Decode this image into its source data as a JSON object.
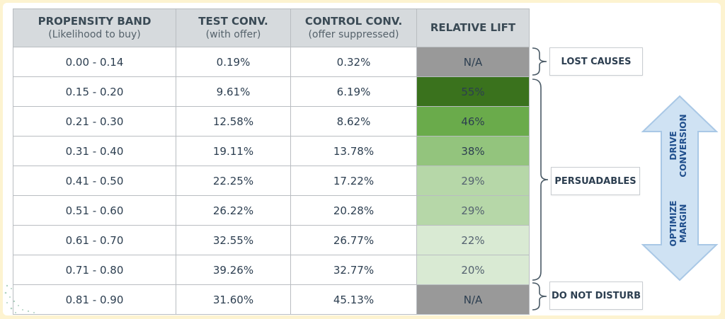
{
  "table": {
    "headers": [
      {
        "title": "PROPENSITY BAND",
        "sub": "(Likelihood to buy)"
      },
      {
        "title": "TEST CONV.",
        "sub": "(with offer)"
      },
      {
        "title": "CONTROL CONV.",
        "sub": "(offer suppressed)"
      },
      {
        "title": "RELATIVE LIFT",
        "sub": ""
      }
    ],
    "rows": [
      {
        "band": "0.00 - 0.14",
        "test": "0.19%",
        "control": "0.32%",
        "lift": "N/A",
        "lift_color": "#999999"
      },
      {
        "band": "0.15 - 0.20",
        "test": "9.61%",
        "control": "6.19%",
        "lift": "55%",
        "lift_color": "#3a721d"
      },
      {
        "band": "0.21 - 0.30",
        "test": "12.58%",
        "control": "8.62%",
        "lift": "46%",
        "lift_color": "#6aab4b"
      },
      {
        "band": "0.31 - 0.40",
        "test": "19.11%",
        "control": "13.78%",
        "lift": "38%",
        "lift_color": "#93c47d"
      },
      {
        "band": "0.41 - 0.50",
        "test": "22.25%",
        "control": "17.22%",
        "lift": "29%",
        "lift_color": "#b6d7a8"
      },
      {
        "band": "0.51 - 0.60",
        "test": "26.22%",
        "control": "20.28%",
        "lift": "29%",
        "lift_color": "#b6d7a8"
      },
      {
        "band": "0.61 - 0.70",
        "test": "32.55%",
        "control": "26.77%",
        "lift": "22%",
        "lift_color": "#d9ead3"
      },
      {
        "band": "0.71 - 0.80",
        "test": "39.26%",
        "control": "32.77%",
        "lift": "20%",
        "lift_color": "#d9ead3"
      },
      {
        "band": "0.81 - 0.90",
        "test": "31.60%",
        "control": "45.13%",
        "lift": "N/A",
        "lift_color": "#999999"
      }
    ]
  },
  "segments": {
    "lost_causes": "LOST CAUSES",
    "persuadables": "PERSUADABLES",
    "do_not_disturb": "DO NOT DISTURB"
  },
  "arrow": {
    "top_line1": "DRIVE",
    "top_line2": "CONVERSION",
    "bottom_line1": "OPTIMIZE",
    "bottom_line2": "MARGIN",
    "fill_color": "#cfe2f3",
    "stroke_color": "#a9c8e6",
    "text_color": "#1f4e8c"
  }
}
